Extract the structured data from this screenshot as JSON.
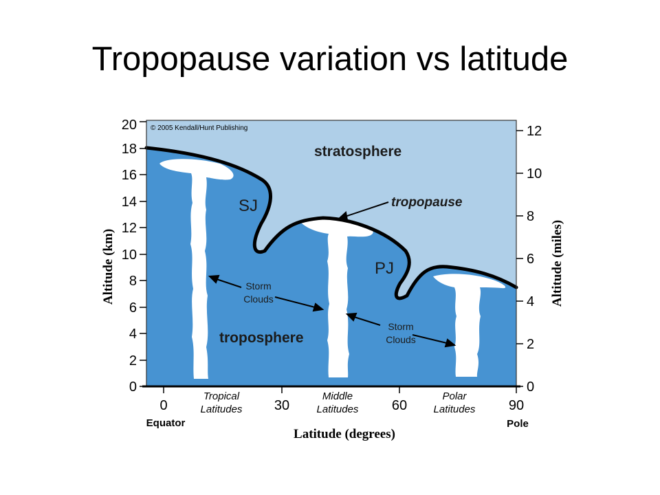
{
  "slide": {
    "title": "Tropopause variation vs latitude"
  },
  "colors": {
    "stratosphere": "#afcfe8",
    "troposphere": "#4793d2",
    "cloud": "#ffffff",
    "tropopause_line": "#000000"
  },
  "figure": {
    "copyright": "© 2005 Kendall/Hunt Publishing",
    "labels": {
      "stratosphere": "stratosphere",
      "troposphere": "troposphere",
      "tropopause": "tropopause",
      "sj": "SJ",
      "pj": "PJ",
      "storm_clouds_1": [
        "Storm",
        "Clouds"
      ],
      "storm_clouds_2": [
        "Storm",
        "Clouds"
      ]
    },
    "left_axis": {
      "title": "Altitude (km)",
      "ticks": [
        "0",
        "2",
        "4",
        "6",
        "8",
        "10",
        "12",
        "14",
        "16",
        "18",
        "20"
      ]
    },
    "right_axis": {
      "title": "Altitude (miles)",
      "ticks": [
        "0",
        "2",
        "4",
        "6",
        "8",
        "10",
        "12"
      ]
    },
    "x_axis": {
      "title": "Latitude (degrees)",
      "ticks": [
        "0",
        "30",
        "60",
        "90"
      ],
      "zone_labels": [
        [
          "Tropical",
          "Latitudes"
        ],
        [
          "Middle",
          "Latitudes"
        ],
        [
          "Polar",
          "Latitudes"
        ]
      ],
      "end_labels": {
        "equator": "Equator",
        "pole": "Pole"
      }
    }
  }
}
